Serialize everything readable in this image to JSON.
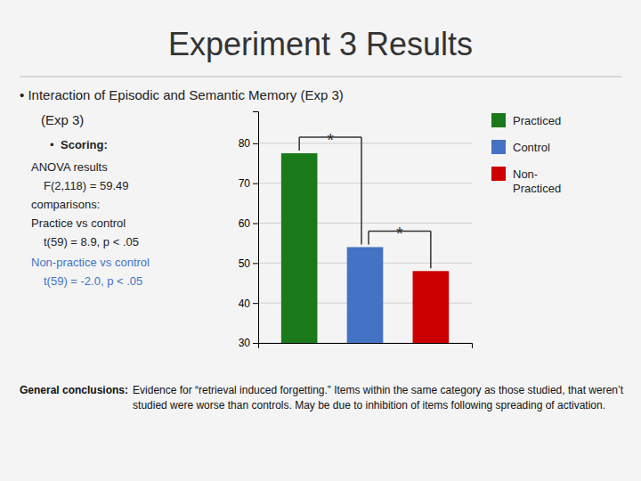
{
  "chart_data": {
    "type": "bar",
    "title": "Experiment 3 Results",
    "categories": [
      "Practiced",
      "Control",
      "Non-\nPracticed"
    ],
    "values": [
      77.5,
      54.0,
      48.0
    ],
    "colors": [
      "#1a7a1a",
      "#4472c4",
      "#cc0000"
    ],
    "ylim": [
      30,
      88
    ],
    "yticks": [
      30,
      40,
      50,
      60,
      70,
      80
    ],
    "grid": true,
    "legend": "right",
    "tick_labels": "y",
    "annotations": [
      "• Interaction of Episodic and Semantic Memory (Exp 3)",
      "(Exp 3)",
      "•",
      "Scoring:",
      "ANOVA results",
      "F(2,118) = 59.49",
      "comparisons:",
      "Practice vs control",
      "t(59) = 8.9, p < .05",
      "Non-practice vs control",
      "t(59) = -2.0, p < .05",
      "General conclusions:",
      " Evidence for “retrieval induced forgetting.” Items within the same category as those studied, that weren’t studied were worse than controls. May be due to inhibition of items following spreading of activation.",
      "*",
      "*"
    ]
  }
}
